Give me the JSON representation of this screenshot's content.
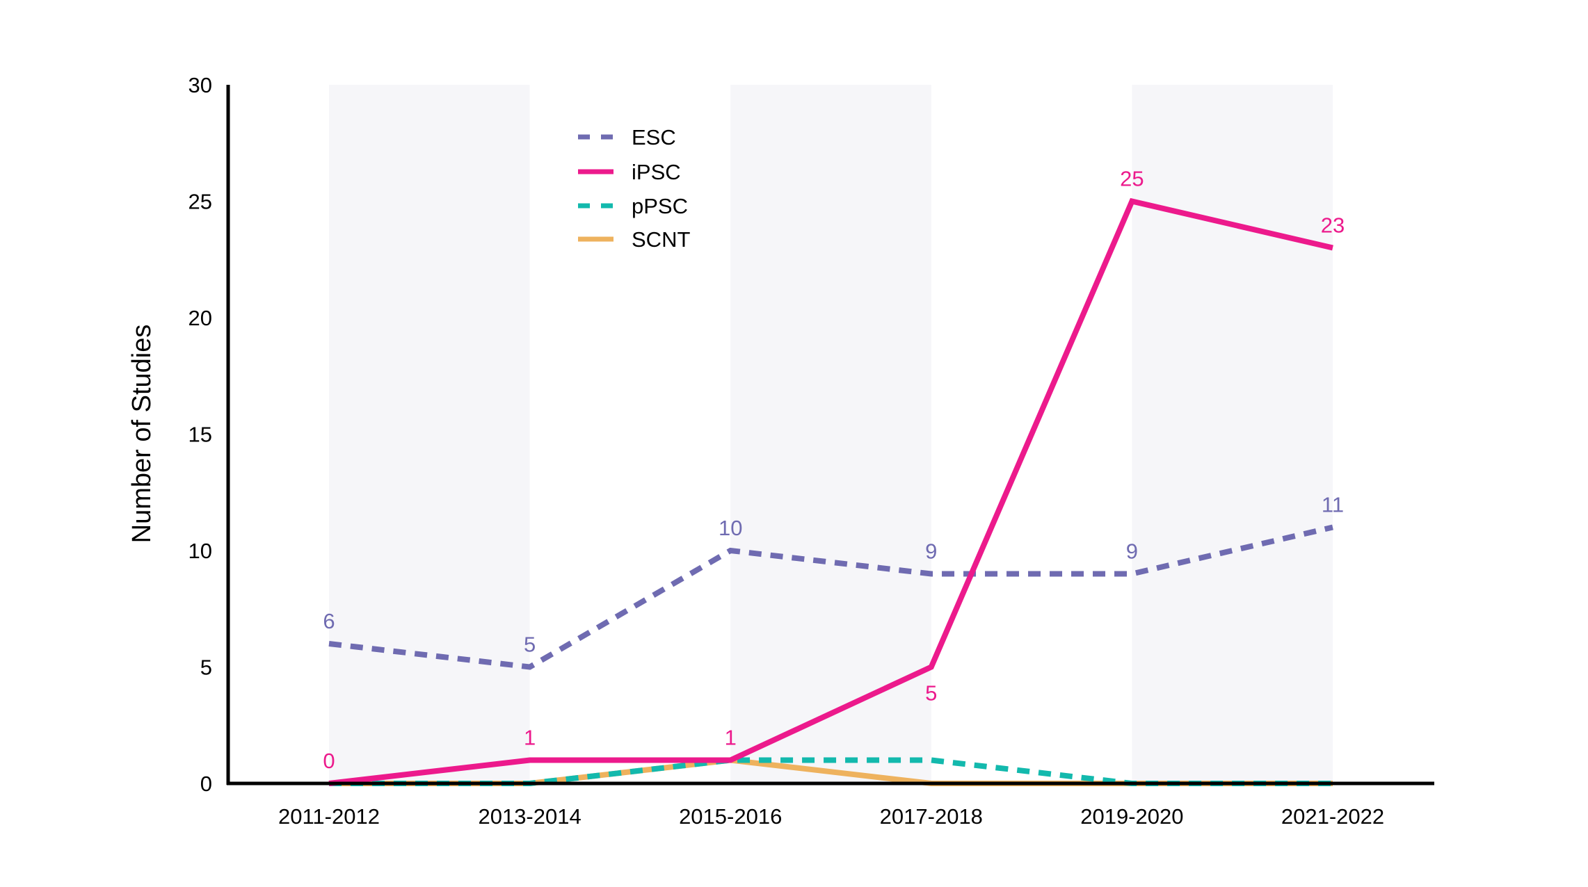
{
  "chart_data": {
    "type": "line",
    "title": "",
    "xlabel": "",
    "ylabel": "Number of Studies",
    "ylim": [
      0,
      30
    ],
    "yticks": [
      0,
      5,
      10,
      15,
      20,
      25,
      30
    ],
    "grid": false,
    "alternating_bands": true,
    "legend_position": "upper-left-inside",
    "categories": [
      "2011-2012",
      "2013-2014",
      "2015-2016",
      "2017-2018",
      "2019-2020",
      "2021-2022"
    ],
    "series": [
      {
        "name": "ESC",
        "values": [
          6,
          5,
          10,
          9,
          9,
          11
        ],
        "color": "#6f6bb1",
        "style": "dashed",
        "data_labels": true,
        "label_position": "above"
      },
      {
        "name": "iPSC",
        "values": [
          0,
          1,
          1,
          5,
          25,
          23
        ],
        "color": "#ec1a8c",
        "style": "solid",
        "data_labels": true,
        "label_position": [
          "above",
          "above",
          "above",
          "below",
          "above",
          "above"
        ]
      },
      {
        "name": "pPSC",
        "values": [
          0,
          0,
          1,
          1,
          0,
          0
        ],
        "color": "#13b9ad",
        "style": "dashed",
        "data_labels": false
      },
      {
        "name": "SCNT",
        "values": [
          0,
          0,
          1,
          0,
          0,
          0
        ],
        "color": "#eeb25e",
        "style": "solid",
        "data_labels": false
      }
    ]
  },
  "colors": {
    "band": "#f6f6f9",
    "axis": "#000000"
  }
}
